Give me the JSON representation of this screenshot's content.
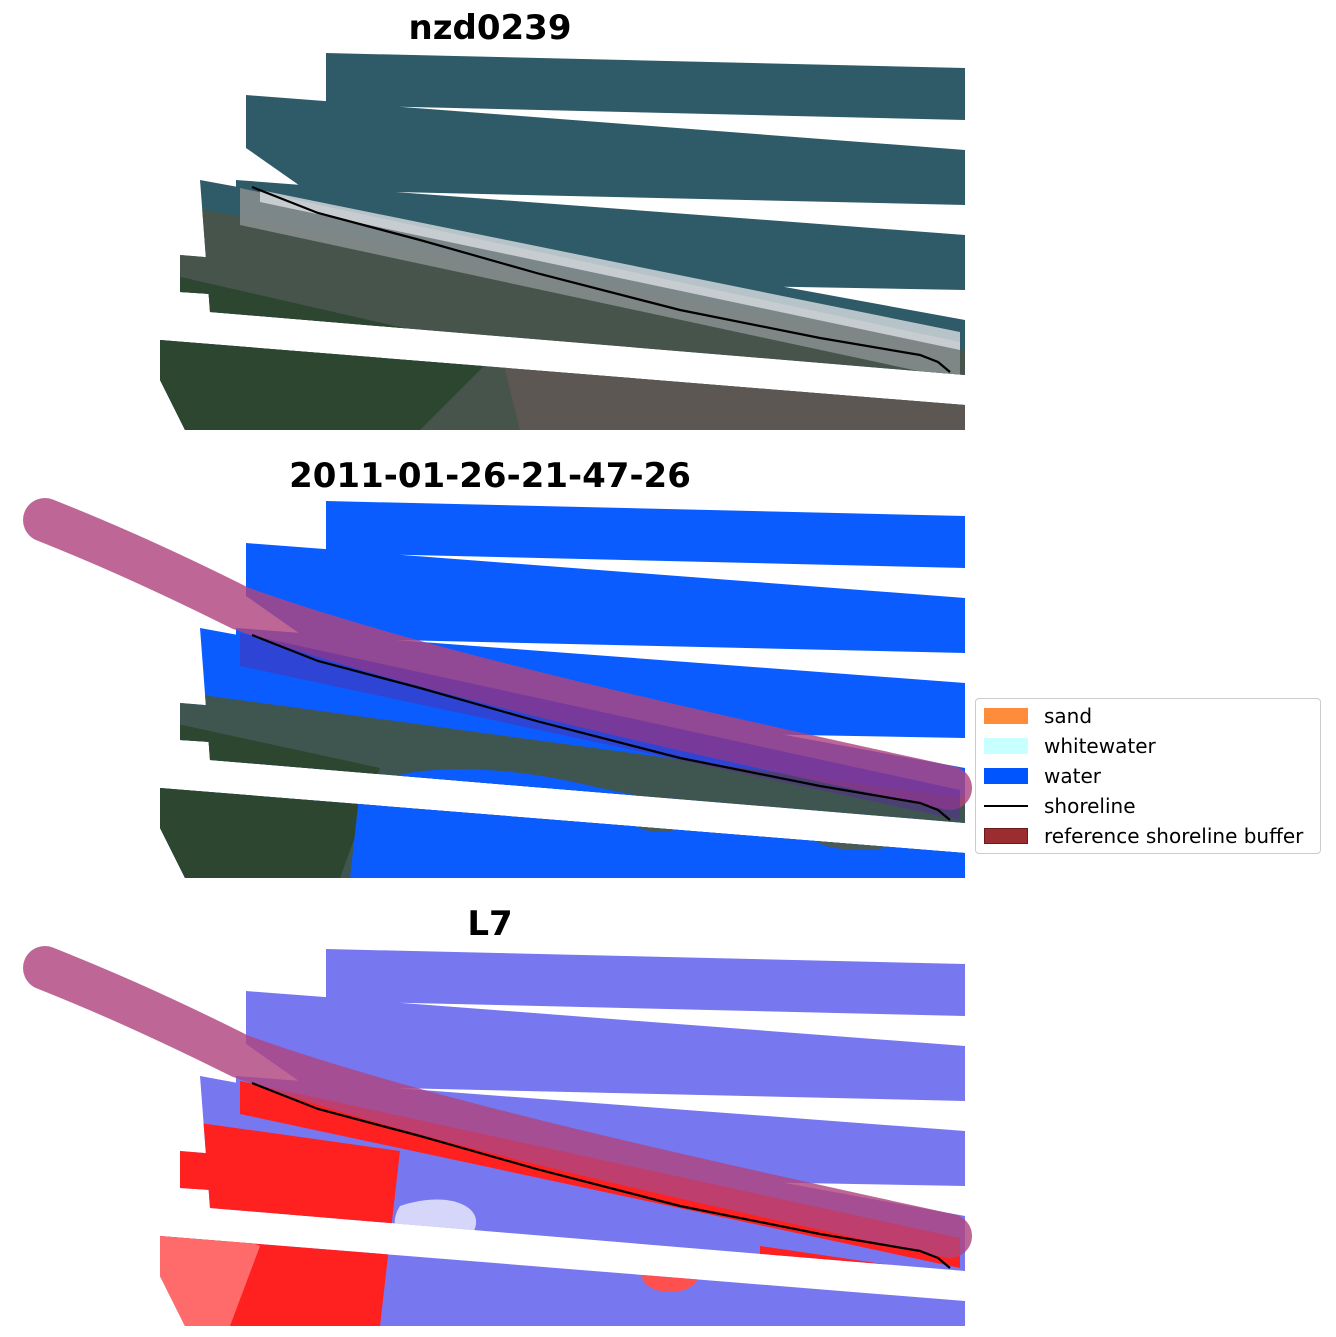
{
  "figure": {
    "panels": [
      {
        "title": "nzd0239",
        "kind": "rgb"
      },
      {
        "title": "2011-01-26-21-47-26",
        "kind": "classified"
      },
      {
        "title": "L7",
        "kind": "index"
      }
    ],
    "legend": {
      "items": [
        {
          "label": "sand",
          "color": "#ff8c3a",
          "type": "patch"
        },
        {
          "label": "whitewater",
          "color": "#c8ffff",
          "type": "patch"
        },
        {
          "label": "water",
          "color": "#0055ff",
          "type": "patch"
        },
        {
          "label": "shoreline",
          "color": "#000000",
          "type": "line"
        },
        {
          "label": "reference shoreline buffer",
          "color": "#9b2d30",
          "type": "patch"
        }
      ]
    },
    "colors": {
      "sea": "#2f5b68",
      "land": "#4a5a52",
      "water_class": "#0a5cff",
      "buffer": "#b0467f",
      "index_water": "#7777f0",
      "index_land": "#ff2020"
    }
  }
}
